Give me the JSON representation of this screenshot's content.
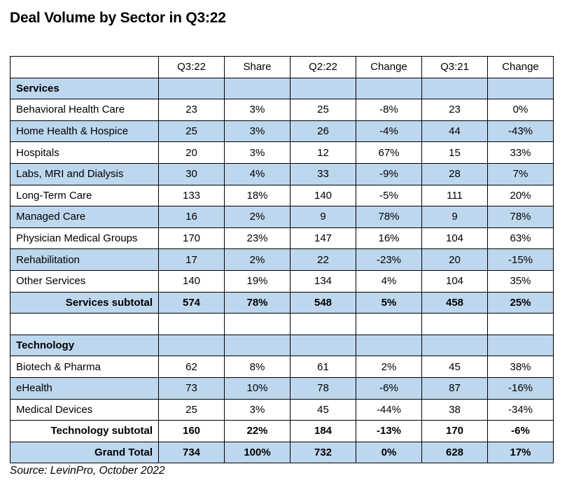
{
  "title": "Deal Volume by Sector in Q3:22",
  "source_note": "Source: LevinPro, October 2022",
  "colors": {
    "row_highlight_blue": "#BDD7EE",
    "border": "#000000",
    "text": "#000000",
    "background": "#ffffff"
  },
  "chart_data": {
    "type": "table",
    "title": "Deal Volume by Sector in Q3:22",
    "source": "Source: LevinPro, October 2022",
    "columns": [
      "",
      "Q3:22",
      "Share",
      "Q2:22",
      "Change",
      "Q3:21",
      "Change"
    ],
    "rows": [
      {
        "label": "Services",
        "values": [
          "",
          "",
          "",
          "",
          "",
          ""
        ],
        "bg": "blue",
        "bold": true,
        "label_align": "left"
      },
      {
        "label": "Behavioral Health Care",
        "values": [
          "23",
          "3%",
          "25",
          "-8%",
          "23",
          "0%"
        ],
        "bg": "white",
        "bold": false,
        "label_align": "left"
      },
      {
        "label": "Home Health & Hospice",
        "values": [
          "25",
          "3%",
          "26",
          "-4%",
          "44",
          "-43%"
        ],
        "bg": "blue",
        "bold": false,
        "label_align": "left"
      },
      {
        "label": "Hospitals",
        "values": [
          "20",
          "3%",
          "12",
          "67%",
          "15",
          "33%"
        ],
        "bg": "white",
        "bold": false,
        "label_align": "left"
      },
      {
        "label": "Labs, MRI and Dialysis",
        "values": [
          "30",
          "4%",
          "33",
          "-9%",
          "28",
          "7%"
        ],
        "bg": "blue",
        "bold": false,
        "label_align": "left"
      },
      {
        "label": "Long-Term Care",
        "values": [
          "133",
          "18%",
          "140",
          "-5%",
          "111",
          "20%"
        ],
        "bg": "white",
        "bold": false,
        "label_align": "left"
      },
      {
        "label": "Managed Care",
        "values": [
          "16",
          "2%",
          "9",
          "78%",
          "9",
          "78%"
        ],
        "bg": "blue",
        "bold": false,
        "label_align": "left"
      },
      {
        "label": "Physician Medical Groups",
        "values": [
          "170",
          "23%",
          "147",
          "16%",
          "104",
          "63%"
        ],
        "bg": "white",
        "bold": false,
        "label_align": "left"
      },
      {
        "label": "Rehabilitation",
        "values": [
          "17",
          "2%",
          "22",
          "-23%",
          "20",
          "-15%"
        ],
        "bg": "blue",
        "bold": false,
        "label_align": "left"
      },
      {
        "label": "Other Services",
        "values": [
          "140",
          "19%",
          "134",
          "4%",
          "104",
          "35%"
        ],
        "bg": "white",
        "bold": false,
        "label_align": "left"
      },
      {
        "label": "Services subtotal",
        "values": [
          "574",
          "78%",
          "548",
          "5%",
          "458",
          "25%"
        ],
        "bg": "blue",
        "bold": true,
        "label_align": "right"
      },
      {
        "label": "",
        "values": [
          "",
          "",
          "",
          "",
          "",
          ""
        ],
        "bg": "white",
        "bold": false,
        "label_align": "left"
      },
      {
        "label": "Technology",
        "values": [
          "",
          "",
          "",
          "",
          "",
          ""
        ],
        "bg": "blue",
        "bold": true,
        "label_align": "left"
      },
      {
        "label": "Biotech & Pharma",
        "values": [
          "62",
          "8%",
          "61",
          "2%",
          "45",
          "38%"
        ],
        "bg": "white",
        "bold": false,
        "label_align": "left"
      },
      {
        "label": "eHealth",
        "values": [
          "73",
          "10%",
          "78",
          "-6%",
          "87",
          "-16%"
        ],
        "bg": "blue",
        "bold": false,
        "label_align": "left"
      },
      {
        "label": "Medical Devices",
        "values": [
          "25",
          "3%",
          "45",
          "-44%",
          "38",
          "-34%"
        ],
        "bg": "white",
        "bold": false,
        "label_align": "left"
      },
      {
        "label": "Technology subtotal",
        "values": [
          "160",
          "22%",
          "184",
          "-13%",
          "170",
          "-6%"
        ],
        "bg": "white",
        "bold": true,
        "label_align": "right"
      },
      {
        "label": "Grand Total",
        "values": [
          "734",
          "100%",
          "732",
          "0%",
          "628",
          "17%"
        ],
        "bg": "blue",
        "bold": true,
        "label_align": "right"
      }
    ]
  }
}
